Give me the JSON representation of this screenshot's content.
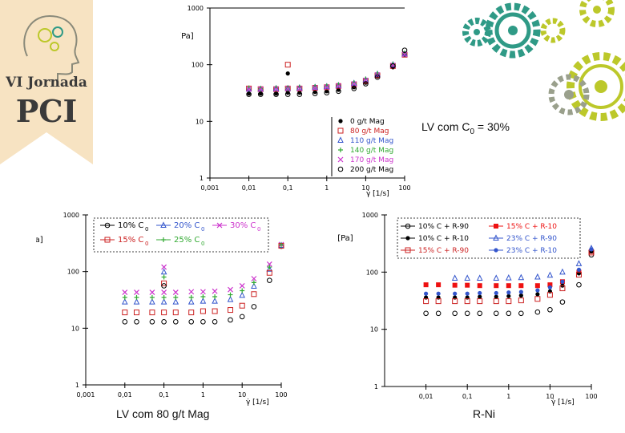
{
  "logo": {
    "line1": "VI Jornada",
    "line2": "PCI"
  },
  "colors": {
    "badge_bg": "#f7e3c2",
    "badge_text": "#3a3a3a",
    "gear_teal": "#2f9a86",
    "gear_olive": "#bcc82a",
    "gear_gray": "#9aa08c"
  },
  "chart_data": [
    {
      "id": "top",
      "type": "scatter",
      "title": "",
      "caption": "LV com C",
      "caption_sub": "0",
      "caption_tail": " = 30%",
      "xlabel": "γ̇ [1/s]",
      "ylabel": "τ [Pa]",
      "xscale": "log",
      "yscale": "log",
      "xlim": [
        0.001,
        100
      ],
      "ylim": [
        1,
        1000
      ],
      "xticks": [
        "0,001",
        "0,01",
        "0,1",
        "1",
        "10",
        "100"
      ],
      "yticks": [
        "1",
        "10",
        "100",
        "1000"
      ],
      "legend_position": "bottom-right",
      "series": [
        {
          "name": "0 g/t Mag",
          "color": "#000000",
          "marker": "dot",
          "x": [
            0.01,
            0.02,
            0.05,
            0.1,
            0.2,
            0.5,
            1,
            2,
            5,
            10,
            20,
            50,
            100
          ],
          "y": [
            31,
            31,
            31,
            32,
            32,
            33,
            34,
            36,
            40,
            48,
            62,
            90,
            150
          ]
        },
        {
          "name": "80 g/t Mag",
          "color": "#cc2222",
          "marker": "square",
          "x": [
            0.01,
            0.02,
            0.05,
            0.1,
            0.2,
            0.5,
            1,
            2,
            5,
            10,
            20,
            50,
            100
          ],
          "y": [
            38,
            37,
            37,
            38,
            38,
            39,
            40,
            42,
            45,
            52,
            65,
            95,
            150
          ]
        },
        {
          "name": "110 g/t Mag",
          "color": "#3355cc",
          "marker": "triangle",
          "x": [
            0.01,
            0.02,
            0.05,
            0.1,
            0.2,
            0.5,
            1,
            2,
            5,
            10,
            20,
            50,
            100
          ],
          "y": [
            37,
            37,
            38,
            38,
            39,
            40,
            41,
            43,
            47,
            54,
            68,
            100,
            155
          ]
        },
        {
          "name": "140 g/t Mag",
          "color": "#33aa33",
          "marker": "plus",
          "x": [
            0.01,
            0.02,
            0.05,
            0.1,
            0.2,
            0.5,
            1,
            2,
            5,
            10,
            20,
            50,
            100
          ],
          "y": [
            39,
            38,
            39,
            39,
            40,
            41,
            42,
            44,
            48,
            56,
            70,
            102,
            160
          ]
        },
        {
          "name": "170 g/t Mag",
          "color": "#cc33cc",
          "marker": "cross",
          "x": [
            0.01,
            0.02,
            0.05,
            0.1,
            0.2,
            0.5,
            1,
            2,
            5,
            10,
            20,
            50,
            100
          ],
          "y": [
            37,
            37,
            37,
            38,
            38,
            39,
            40,
            42,
            46,
            53,
            66,
            97,
            152
          ]
        },
        {
          "name": "200 g/t Mag",
          "color": "#000000",
          "marker": "circle",
          "x": [
            0.01,
            0.02,
            0.05,
            0.1,
            0.2,
            0.5,
            1,
            2,
            5,
            10,
            20,
            50,
            100
          ],
          "y": [
            30,
            30,
            30,
            30,
            30,
            31,
            32,
            34,
            38,
            46,
            60,
            95,
            180
          ]
        }
      ],
      "outliers": [
        {
          "x": 0.1,
          "y": 100,
          "color": "#cc2222",
          "marker": "square"
        },
        {
          "x": 0.1,
          "y": 70,
          "color": "#000000",
          "marker": "dot"
        }
      ]
    },
    {
      "id": "left",
      "type": "scatter",
      "caption": "LV com 80 g/t Mag",
      "xlabel": "γ̇ [1/s]",
      "ylabel": "τ [Pa]",
      "xscale": "log",
      "yscale": "log",
      "xlim": [
        0.001,
        100
      ],
      "ylim": [
        1,
        1000
      ],
      "xticks": [
        "0,001",
        "0,01",
        "0,1",
        "1",
        "10",
        "100"
      ],
      "yticks": [
        "1",
        "10",
        "100",
        "1000"
      ],
      "legend_position": "top",
      "legend_sub": "0",
      "series": [
        {
          "name": "10% C",
          "color": "#000000",
          "marker": "circle",
          "x": [
            0.01,
            0.02,
            0.05,
            0.1,
            0.2,
            0.5,
            1,
            2,
            5,
            10,
            20,
            50,
            100
          ],
          "y": [
            13,
            13,
            13,
            13,
            13,
            13,
            13,
            13,
            14,
            16,
            24,
            70,
            280
          ]
        },
        {
          "name": "20% C",
          "color": "#3355cc",
          "marker": "triangle",
          "x": [
            0.01,
            0.02,
            0.05,
            0.1,
            0.2,
            0.5,
            1,
            2,
            5,
            10,
            20,
            50,
            100
          ],
          "y": [
            29,
            29,
            29,
            29,
            29,
            29,
            30,
            30,
            32,
            38,
            55,
            110,
            290
          ]
        },
        {
          "name": "30% C",
          "color": "#cc33cc",
          "marker": "cross",
          "x": [
            0.01,
            0.02,
            0.05,
            0.1,
            0.2,
            0.5,
            1,
            2,
            5,
            10,
            20,
            50,
            100
          ],
          "y": [
            43,
            43,
            43,
            43,
            43,
            44,
            44,
            45,
            48,
            56,
            75,
            135,
            300
          ]
        },
        {
          "name": "15% C",
          "color": "#cc2222",
          "marker": "square",
          "x": [
            0.01,
            0.02,
            0.05,
            0.1,
            0.2,
            0.5,
            1,
            2,
            5,
            10,
            20,
            50,
            100
          ],
          "y": [
            19,
            19,
            19,
            19,
            19,
            19,
            20,
            20,
            21,
            25,
            40,
            95,
            285
          ]
        },
        {
          "name": "25% C",
          "color": "#33aa33",
          "marker": "plus",
          "x": [
            0.01,
            0.02,
            0.05,
            0.1,
            0.2,
            0.5,
            1,
            2,
            5,
            10,
            20,
            50,
            100
          ],
          "y": [
            35,
            35,
            35,
            35,
            35,
            35,
            36,
            36,
            39,
            46,
            64,
            120,
            295
          ]
        }
      ],
      "outliers": [
        {
          "x": 0.1,
          "y": 120,
          "color": "#cc33cc",
          "marker": "cross"
        },
        {
          "x": 0.1,
          "y": 98,
          "color": "#3355cc",
          "marker": "triangle"
        },
        {
          "x": 0.1,
          "y": 80,
          "color": "#33aa33",
          "marker": "plus"
        },
        {
          "x": 0.1,
          "y": 62,
          "color": "#cc2222",
          "marker": "square"
        },
        {
          "x": 0.1,
          "y": 56,
          "color": "#000000",
          "marker": "circle"
        }
      ]
    },
    {
      "id": "right",
      "type": "scatter",
      "caption": "R-Ni",
      "xlabel": "γ̇ [1/s]",
      "ylabel": "τ [Pa]",
      "xscale": "log",
      "yscale": "log",
      "xlim": [
        0.001,
        100
      ],
      "ylim": [
        1,
        1000
      ],
      "xticks": [
        "0,01",
        "0,1",
        "1",
        "10",
        "100"
      ],
      "yticks": [
        "1",
        "10",
        "100",
        "1000"
      ],
      "legend_position": "top",
      "legend_sub": "0",
      "series": [
        {
          "name": "10% C + R-90",
          "color": "#000000",
          "marker": "circle",
          "x": [
            0.01,
            0.02,
            0.05,
            0.1,
            0.2,
            0.5,
            1,
            2,
            5,
            10,
            20,
            50,
            100
          ],
          "y": [
            19,
            19,
            19,
            19,
            19,
            19,
            19,
            19,
            20,
            22,
            30,
            60,
            200
          ]
        },
        {
          "name": "15% C + R-10",
          "color": "#ee1111",
          "marker": "filled-square",
          "x": [
            0.01,
            0.02,
            0.05,
            0.1,
            0.2,
            0.5,
            1,
            2,
            5,
            10,
            20,
            50,
            100
          ],
          "y": [
            60,
            60,
            59,
            59,
            58,
            58,
            58,
            58,
            58,
            60,
            68,
            100,
            230
          ]
        },
        {
          "name": "10% C + R-10",
          "color": "#000000",
          "marker": "dot",
          "x": [
            0.01,
            0.02,
            0.05,
            0.1,
            0.2,
            0.5,
            1,
            2,
            5,
            10,
            20,
            50,
            100
          ],
          "y": [
            36,
            36,
            36,
            36,
            37,
            37,
            38,
            39,
            41,
            46,
            58,
            95,
            230
          ]
        },
        {
          "name": "23% C + R-90",
          "color": "#3355cc",
          "marker": "triangle",
          "x": [
            0.05,
            0.1,
            0.2,
            0.5,
            1,
            2,
            5,
            10,
            20,
            50,
            100
          ],
          "y": [
            78,
            78,
            78,
            78,
            79,
            80,
            82,
            88,
            100,
            140,
            260
          ]
        },
        {
          "name": "15% C + R-90",
          "color": "#cc2222",
          "marker": "square",
          "x": [
            0.01,
            0.02,
            0.05,
            0.1,
            0.2,
            0.5,
            1,
            2,
            5,
            10,
            20,
            50,
            100
          ],
          "y": [
            31,
            31,
            31,
            31,
            31,
            31,
            31,
            32,
            34,
            40,
            52,
            90,
            220
          ]
        },
        {
          "name": "23% C + R-10",
          "color": "#3355cc",
          "marker": "dot",
          "x": [
            0.01,
            0.02,
            0.05,
            0.1,
            0.2,
            0.5,
            1,
            2,
            5,
            10,
            20,
            50,
            100
          ],
          "y": [
            42,
            42,
            42,
            42,
            43,
            43,
            44,
            45,
            48,
            54,
            68,
            110,
            250
          ]
        }
      ]
    }
  ]
}
